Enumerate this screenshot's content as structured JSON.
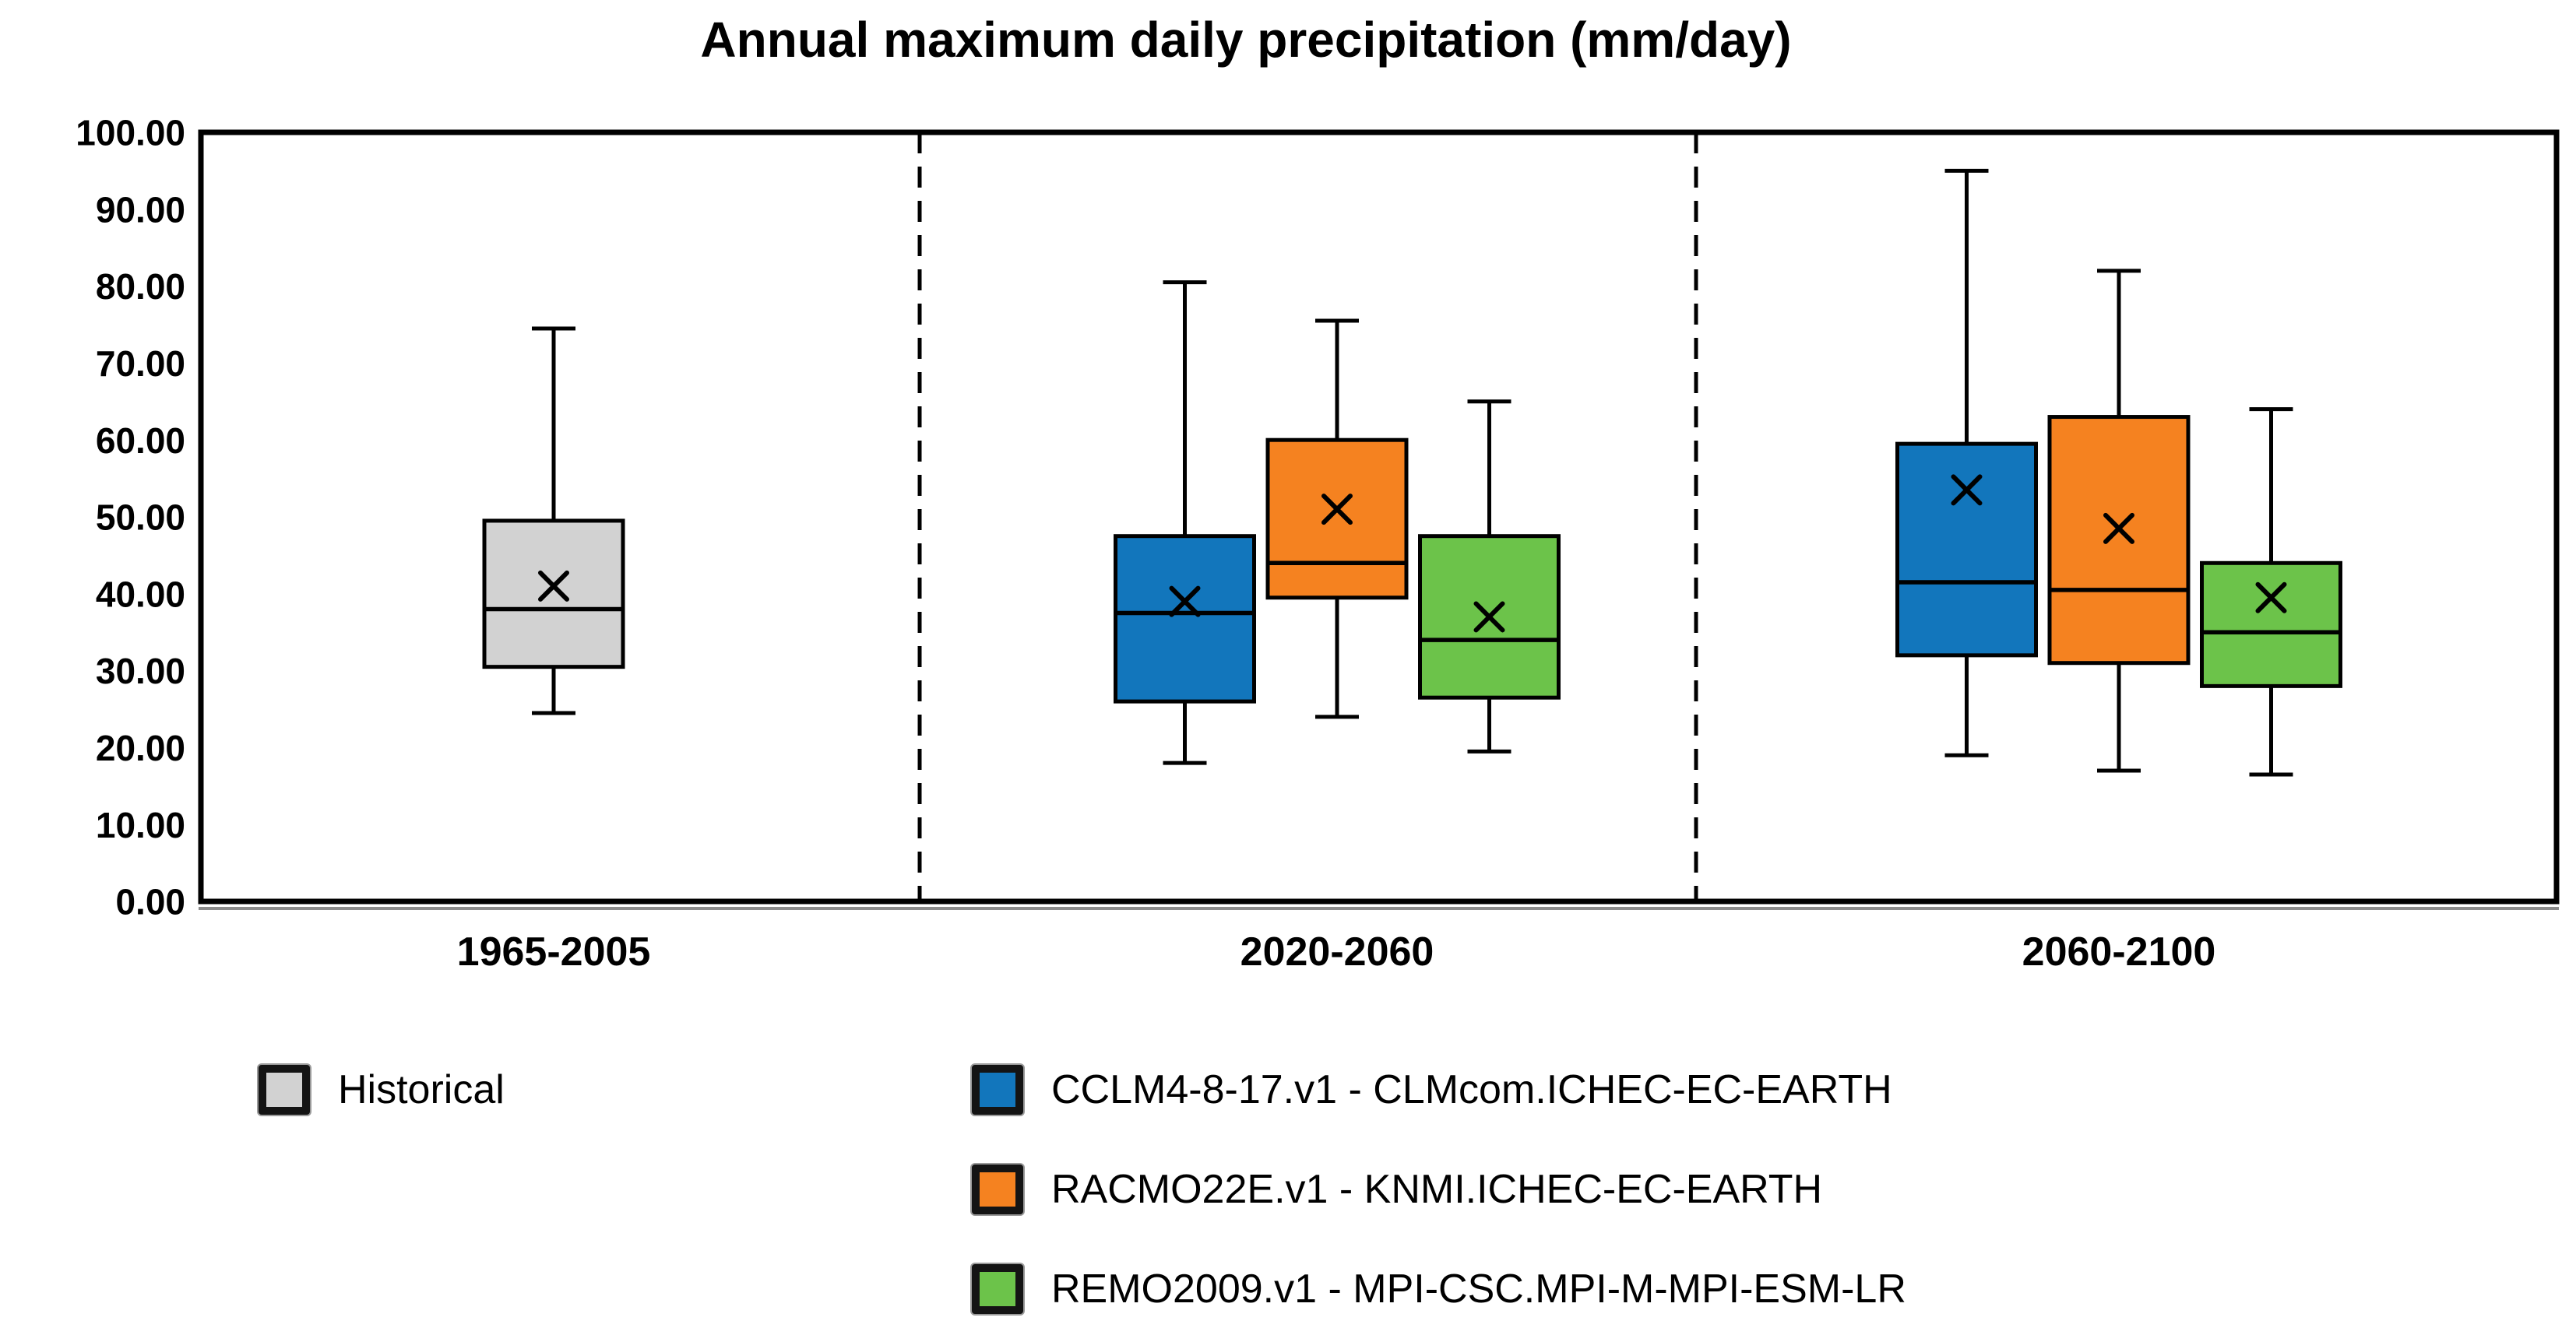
{
  "chart_data": {
    "type": "box",
    "title": "Annual maximum daily precipitation (mm/day)",
    "y_axis": {
      "min": 0,
      "max": 100,
      "tick_step": 10,
      "tick_values": [
        100,
        90,
        80,
        70,
        60,
        50,
        40,
        30,
        20,
        10,
        0
      ],
      "tick_labels": [
        "100.00",
        "90.00",
        "80.00",
        "70.00",
        "60.00",
        "50.00",
        "40.00",
        "30.00",
        "20.00",
        "10.00",
        "0.00"
      ]
    },
    "categories": [
      "1965-2005",
      "2020-2060",
      "2060-2100"
    ],
    "grid": false,
    "legend_position": "below",
    "mean_marker": "x",
    "group_separators": "dashed",
    "series": [
      {
        "name": "Historical",
        "color": "#D2D2D2",
        "boxes": [
          {
            "period": "1965-2005",
            "whisker_low": 24.5,
            "q1": 30.5,
            "median": 38,
            "mean": 41,
            "q3": 49.5,
            "whisker_high": 74.5
          }
        ]
      },
      {
        "name": "CCLM4-8-17.v1 - CLMcom.ICHEC-EC-EARTH",
        "color": "#1276BC",
        "boxes": [
          {
            "period": "2020-2060",
            "whisker_low": 18,
            "q1": 26,
            "median": 37.5,
            "mean": 39,
            "q3": 47.5,
            "whisker_high": 80.5
          },
          {
            "period": "2060-2100",
            "whisker_low": 19,
            "q1": 32,
            "median": 41.5,
            "mean": 53.5,
            "q3": 59.5,
            "whisker_high": 95
          }
        ]
      },
      {
        "name": "RACMO22E.v1 - KNMI.ICHEC-EC-EARTH",
        "color": "#F58220",
        "boxes": [
          {
            "period": "2020-2060",
            "whisker_low": 24,
            "q1": 39.5,
            "median": 44,
            "mean": 51,
            "q3": 60,
            "whisker_high": 75.5
          },
          {
            "period": "2060-2100",
            "whisker_low": 17,
            "q1": 31,
            "median": 40.5,
            "mean": 48.5,
            "q3": 63,
            "whisker_high": 82
          }
        ]
      },
      {
        "name": "REMO2009.v1 - MPI-CSC.MPI-M-MPI-ESM-LR",
        "color": "#6CC34A",
        "boxes": [
          {
            "period": "2020-2060",
            "whisker_low": 19.5,
            "q1": 26.5,
            "median": 34,
            "mean": 37,
            "q3": 47.5,
            "whisker_high": 65
          },
          {
            "period": "2060-2100",
            "whisker_low": 16.5,
            "q1": 28,
            "median": 35,
            "mean": 39.5,
            "q3": 44,
            "whisker_high": 64
          }
        ]
      }
    ]
  },
  "legend": {
    "items": [
      {
        "label": "Historical"
      },
      {
        "label": "CCLM4-8-17.v1 - CLMcom.ICHEC-EC-EARTH"
      },
      {
        "label": "RACMO22E.v1 - KNMI.ICHEC-EC-EARTH"
      },
      {
        "label": "REMO2009.v1 - MPI-CSC.MPI-M-MPI-ESM-LR"
      }
    ]
  }
}
